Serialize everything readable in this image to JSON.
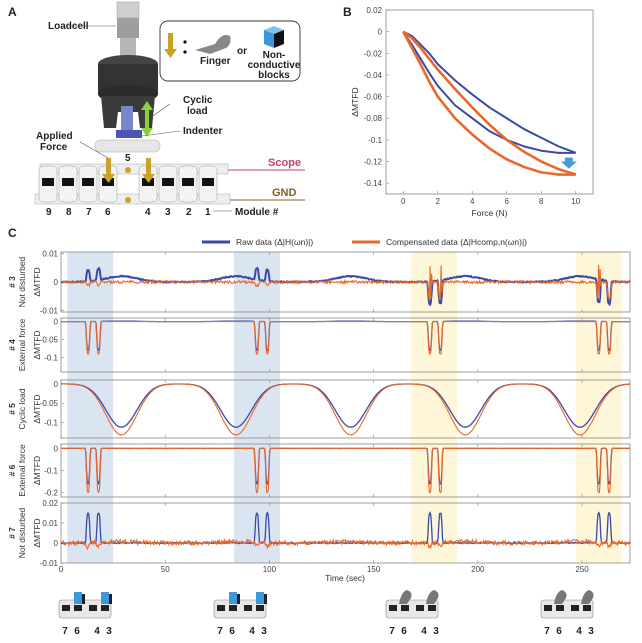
{
  "panel_a": {
    "letter": "A",
    "loadcell": "Loadcell",
    "legend_finger": "Finger",
    "legend_or": "or",
    "legend_blocks": [
      "Non-",
      "conductive",
      "blocks"
    ],
    "cyclic_load": [
      "Cyclic",
      "load"
    ],
    "indenter": "Indenter",
    "applied_force": [
      "Applied",
      "Force"
    ],
    "center_module": "5",
    "scope": "Scope",
    "gnd": "GND",
    "modules_left": [
      "9",
      "8",
      "7",
      "6"
    ],
    "modules_right": [
      "4",
      "3",
      "2",
      "1"
    ],
    "module_label": "Module #",
    "colors": {
      "scope": "#c2416b",
      "gnd": "#8a5a2b",
      "arrow": "#c9a227",
      "block": "#3a9ad9",
      "cyclic_arrow": "#8ccf3c"
    }
  },
  "chart_data": [
    {
      "panel": "B",
      "type": "line",
      "xlabel": "Force (N)",
      "ylabel": "ΔMTFD",
      "xlim": [
        -1,
        11
      ],
      "ylim": [
        -0.15,
        0.02
      ],
      "xticks": [
        0,
        2,
        4,
        6,
        8,
        10
      ],
      "yticks": [
        0.02,
        0,
        -0.02,
        -0.04,
        -0.06,
        -0.08,
        -0.1,
        -0.12,
        -0.14
      ],
      "ytick_labels": [
        "0.02",
        "0",
        "-0.02",
        "-0.04",
        "-0.06",
        "-0.08",
        "-0.1",
        "-0.12",
        "-0.14"
      ],
      "annotation": "down-arrow near Force 9.5 between curves",
      "series": [
        {
          "color": "#3a4aa6",
          "branches": [
            {
              "x": [
                0,
                0.5,
                1,
                1.5,
                2,
                3,
                4,
                5,
                6,
                7,
                8,
                9,
                10
              ],
              "y": [
                0,
                -0.004,
                -0.012,
                -0.02,
                -0.03,
                -0.045,
                -0.058,
                -0.07,
                -0.08,
                -0.09,
                -0.098,
                -0.106,
                -0.112
              ]
            },
            {
              "x": [
                0,
                0.5,
                1,
                1.5,
                2,
                3,
                4,
                5,
                6,
                7,
                8,
                9,
                10
              ],
              "y": [
                0,
                -0.012,
                -0.025,
                -0.038,
                -0.05,
                -0.068,
                -0.08,
                -0.092,
                -0.1,
                -0.106,
                -0.11,
                -0.112,
                -0.112
              ]
            }
          ]
        },
        {
          "color": "#e8692a",
          "branches": [
            {
              "x": [
                0,
                0.5,
                1,
                1.5,
                2,
                3,
                4,
                5,
                6,
                7,
                8,
                9,
                10
              ],
              "y": [
                0,
                -0.006,
                -0.015,
                -0.025,
                -0.035,
                -0.053,
                -0.07,
                -0.086,
                -0.1,
                -0.111,
                -0.12,
                -0.127,
                -0.132
              ]
            },
            {
              "x": [
                0,
                0.5,
                1,
                1.5,
                2,
                3,
                4,
                5,
                6,
                7,
                8,
                9,
                10
              ],
              "y": [
                0,
                -0.015,
                -0.03,
                -0.046,
                -0.06,
                -0.08,
                -0.095,
                -0.108,
                -0.118,
                -0.125,
                -0.13,
                -0.132,
                -0.132
              ]
            }
          ]
        }
      ]
    },
    {
      "panel": "C",
      "type": "line",
      "xlabel": "Time (sec)",
      "xlim": [
        0,
        273
      ],
      "xticks": [
        0,
        50,
        100,
        150,
        200,
        250
      ],
      "legend": [
        "Raw data (Δ|H(ωn)|)",
        "Compensated data (Δ|Hcomp,n(ωn)|)"
      ],
      "legend_placement": "top-center",
      "series_colors": {
        "raw": "#3a4aa6",
        "compensated": "#e8692a"
      },
      "highlight_bands": [
        {
          "from": 3,
          "to": 25,
          "color": "#dbe5f1"
        },
        {
          "from": 83,
          "to": 105,
          "color": "#dbe5f1"
        },
        {
          "from": 168,
          "to": 190,
          "color": "#fdf6d8"
        },
        {
          "from": 247,
          "to": 269,
          "color": "#fdf6d8"
        }
      ],
      "cyclic_load_minima_times": [
        29,
        84,
        139,
        194,
        249
      ],
      "press_event_times": [
        13,
        18,
        94,
        99,
        177,
        182,
        258,
        263
      ],
      "panels": [
        {
          "id": "# 3",
          "condition": "Not disturbed",
          "ylabel": "ΔMTFD",
          "ylim": [
            -0.0105,
            0.0105
          ],
          "yticks": [
            0.01,
            0,
            -0.01
          ],
          "ytick_labels": [
            "0.01",
            "0",
            "-0.01"
          ],
          "raw_cycle_offset": 0.002,
          "raw_event_blue": 0.004,
          "raw_event_yellow": -0.008,
          "noise": 0.0006
        },
        {
          "id": "# 4",
          "condition": "External force",
          "ylabel": "ΔMTFD",
          "ylim": [
            -0.14,
            0.01
          ],
          "yticks": [
            0,
            -0.05,
            -0.1
          ],
          "ytick_labels": [
            "0",
            "-0.05",
            "-0.1"
          ],
          "raw_event_peak": -0.08,
          "comp_event_peak": -0.09
        },
        {
          "id": "# 5",
          "condition": "Cyclic load",
          "ylabel": "ΔMTFD",
          "ylim": [
            -0.14,
            0.01
          ],
          "yticks": [
            0,
            -0.05,
            -0.1
          ],
          "ytick_labels": [
            "0",
            "-0.05",
            "-0.1"
          ],
          "raw_cycle_min": -0.112,
          "comp_cycle_min": -0.132
        },
        {
          "id": "# 6",
          "condition": "External force",
          "ylabel": "ΔMTFD",
          "ylim": [
            -0.22,
            0.02
          ],
          "yticks": [
            0,
            -0.1,
            -0.2
          ],
          "ytick_labels": [
            "0",
            "-0.1",
            "-0.2"
          ],
          "raw_event_peak": -0.16,
          "comp_event_peak": -0.2
        },
        {
          "id": "# 7",
          "condition": "Not disturbed",
          "ylabel": "ΔMTFD",
          "ylim": [
            -0.01,
            0.02
          ],
          "yticks": [
            0.02,
            0.01,
            0,
            -0.01
          ],
          "ytick_labels": [
            "0.02",
            "0.01",
            "0",
            "-0.01"
          ],
          "raw_event_peak": 0.015,
          "noise": 0.0012
        }
      ],
      "xtick_labels": [
        "0",
        "50",
        "100",
        "150",
        "200",
        "250"
      ]
    }
  ],
  "panel_b": {
    "letter": "B"
  },
  "panel_c": {
    "letter": "C"
  },
  "bottom_icons": [
    {
      "disturbance": "non-conductive blocks",
      "labels": [
        "7",
        "6",
        "4",
        "3"
      ]
    },
    {
      "disturbance": "non-conductive blocks",
      "labels": [
        "7",
        "6",
        "4",
        "3"
      ]
    },
    {
      "disturbance": "finger",
      "labels": [
        "7",
        "6",
        "4",
        "3"
      ]
    },
    {
      "disturbance": "finger",
      "labels": [
        "7",
        "6",
        "4",
        "3"
      ]
    }
  ]
}
